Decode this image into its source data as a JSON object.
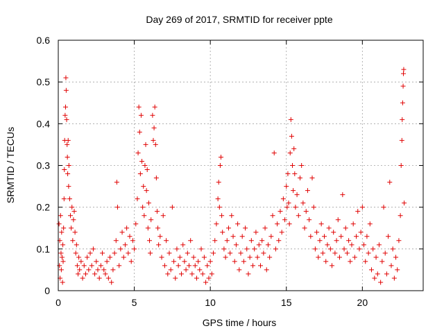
{
  "chart_data": {
    "type": "scatter",
    "title": "Day 269 of 2017, SRMTID for receiver ppte",
    "xlabel": "GPS time / hours",
    "ylabel": "SRMTID / TECUs",
    "xlim": [
      0,
      24
    ],
    "ylim": [
      0,
      0.6
    ],
    "xticks": [
      0,
      5,
      10,
      15,
      20
    ],
    "xtick_labels": [
      "0",
      "5",
      "10",
      "15",
      "20"
    ],
    "yticks": [
      0,
      0.1,
      0.2,
      0.3,
      0.4,
      0.5,
      0.6
    ],
    "ytick_labels": [
      "0",
      "0.1",
      "0.2",
      "0.3",
      "0.4",
      "0.5",
      "0.6"
    ],
    "grid": true,
    "marker": "+",
    "color": "#e00000",
    "series": [
      {
        "name": "SRMTID",
        "points": [
          [
            0.05,
            0.16
          ],
          [
            0.08,
            0.06
          ],
          [
            0.1,
            0.12
          ],
          [
            0.12,
            0.03
          ],
          [
            0.15,
            0.18
          ],
          [
            0.18,
            0.09
          ],
          [
            0.2,
            0.05
          ],
          [
            0.22,
            0.14
          ],
          [
            0.25,
            0.08
          ],
          [
            0.28,
            0.02
          ],
          [
            0.3,
            0.11
          ],
          [
            0.32,
            0.07
          ],
          [
            0.35,
            0.15
          ],
          [
            0.38,
            0.22
          ],
          [
            0.4,
            0.29
          ],
          [
            0.42,
            0.36
          ],
          [
            0.45,
            0.42
          ],
          [
            0.48,
            0.44
          ],
          [
            0.5,
            0.51
          ],
          [
            0.52,
            0.48
          ],
          [
            0.55,
            0.41
          ],
          [
            0.58,
            0.35
          ],
          [
            0.6,
            0.32
          ],
          [
            0.62,
            0.28
          ],
          [
            0.65,
            0.36
          ],
          [
            0.68,
            0.25
          ],
          [
            0.7,
            0.3
          ],
          [
            0.75,
            0.22
          ],
          [
            0.8,
            0.18
          ],
          [
            0.85,
            0.15
          ],
          [
            0.9,
            0.2
          ],
          [
            0.95,
            0.12
          ],
          [
            1.0,
            0.17
          ],
          [
            1.05,
            0.19
          ],
          [
            1.1,
            0.14
          ],
          [
            1.15,
            0.09
          ],
          [
            1.2,
            0.11
          ],
          [
            1.25,
            0.06
          ],
          [
            1.3,
            0.04
          ],
          [
            1.35,
            0.08
          ],
          [
            1.4,
            0.05
          ],
          [
            1.5,
            0.07
          ],
          [
            1.6,
            0.03
          ],
          [
            1.7,
            0.06
          ],
          [
            1.8,
            0.04
          ],
          [
            1.9,
            0.08
          ],
          [
            2.0,
            0.05
          ],
          [
            2.1,
            0.09
          ],
          [
            2.2,
            0.06
          ],
          [
            2.3,
            0.1
          ],
          [
            2.4,
            0.04
          ],
          [
            2.5,
            0.07
          ],
          [
            2.6,
            0.05
          ],
          [
            2.7,
            0.03
          ],
          [
            2.8,
            0.06
          ],
          [
            2.9,
            0.09
          ],
          [
            3.0,
            0.05
          ],
          [
            3.1,
            0.04
          ],
          [
            3.2,
            0.07
          ],
          [
            3.3,
            0.03
          ],
          [
            3.4,
            0.08
          ],
          [
            3.5,
            0.02
          ],
          [
            3.6,
            0.05
          ],
          [
            3.7,
            0.09
          ],
          [
            3.8,
            0.12
          ],
          [
            3.85,
            0.26
          ],
          [
            3.9,
            0.2
          ],
          [
            4.0,
            0.06
          ],
          [
            4.1,
            0.1
          ],
          [
            4.2,
            0.14
          ],
          [
            4.3,
            0.08
          ],
          [
            4.4,
            0.11
          ],
          [
            4.5,
            0.15
          ],
          [
            4.6,
            0.09
          ],
          [
            4.7,
            0.13
          ],
          [
            4.8,
            0.07
          ],
          [
            4.9,
            0.12
          ],
          [
            5.0,
            0.1
          ],
          [
            5.1,
            0.16
          ],
          [
            5.2,
            0.22
          ],
          [
            5.25,
            0.33
          ],
          [
            5.3,
            0.44
          ],
          [
            5.35,
            0.38
          ],
          [
            5.4,
            0.28
          ],
          [
            5.45,
            0.42
          ],
          [
            5.5,
            0.31
          ],
          [
            5.55,
            0.2
          ],
          [
            5.6,
            0.25
          ],
          [
            5.65,
            0.18
          ],
          [
            5.7,
            0.3
          ],
          [
            5.75,
            0.35
          ],
          [
            5.8,
            0.24
          ],
          [
            5.85,
            0.29
          ],
          [
            5.9,
            0.15
          ],
          [
            5.95,
            0.21
          ],
          [
            6.0,
            0.12
          ],
          [
            6.05,
            0.09
          ],
          [
            6.1,
            0.17
          ],
          [
            6.2,
            0.42
          ],
          [
            6.25,
            0.36
          ],
          [
            6.3,
            0.39
          ],
          [
            6.35,
            0.44
          ],
          [
            6.4,
            0.35
          ],
          [
            6.45,
            0.27
          ],
          [
            6.5,
            0.19
          ],
          [
            6.55,
            0.15
          ],
          [
            6.6,
            0.11
          ],
          [
            6.7,
            0.13
          ],
          [
            6.8,
            0.08
          ],
          [
            6.9,
            0.18
          ],
          [
            7.0,
            0.06
          ],
          [
            7.1,
            0.12
          ],
          [
            7.2,
            0.04
          ],
          [
            7.3,
            0.09
          ],
          [
            7.4,
            0.05
          ],
          [
            7.5,
            0.2
          ],
          [
            7.6,
            0.07
          ],
          [
            7.7,
            0.03
          ],
          [
            7.8,
            0.1
          ],
          [
            7.9,
            0.06
          ],
          [
            8.0,
            0.08
          ],
          [
            8.1,
            0.04
          ],
          [
            8.2,
            0.11
          ],
          [
            8.3,
            0.07
          ],
          [
            8.4,
            0.05
          ],
          [
            8.5,
            0.09
          ],
          [
            8.6,
            0.06
          ],
          [
            8.7,
            0.12
          ],
          [
            8.8,
            0.04
          ],
          [
            8.9,
            0.08
          ],
          [
            9.0,
            0.06
          ],
          [
            9.1,
            0.03
          ],
          [
            9.2,
            0.07
          ],
          [
            9.3,
            0.05
          ],
          [
            9.4,
            0.1
          ],
          [
            9.5,
            0.04
          ],
          [
            9.6,
            0.08
          ],
          [
            9.7,
            0.02
          ],
          [
            9.8,
            0.06
          ],
          [
            9.9,
            0.03
          ],
          [
            10.0,
            0.07
          ],
          [
            10.1,
            0.04
          ],
          [
            10.2,
            0.09
          ],
          [
            10.3,
            0.12
          ],
          [
            10.4,
            0.16
          ],
          [
            10.5,
            0.22
          ],
          [
            10.55,
            0.26
          ],
          [
            10.6,
            0.2
          ],
          [
            10.65,
            0.3
          ],
          [
            10.7,
            0.32
          ],
          [
            10.75,
            0.18
          ],
          [
            10.8,
            0.14
          ],
          [
            10.9,
            0.1
          ],
          [
            11.0,
            0.08
          ],
          [
            11.1,
            0.12
          ],
          [
            11.2,
            0.15
          ],
          [
            11.3,
            0.09
          ],
          [
            11.4,
            0.18
          ],
          [
            11.5,
            0.13
          ],
          [
            11.6,
            0.07
          ],
          [
            11.7,
            0.11
          ],
          [
            11.8,
            0.16
          ],
          [
            11.9,
            0.05
          ],
          [
            12.0,
            0.09
          ],
          [
            12.1,
            0.13
          ],
          [
            12.2,
            0.07
          ],
          [
            12.3,
            0.15
          ],
          [
            12.4,
            0.1
          ],
          [
            12.5,
            0.04
          ],
          [
            12.6,
            0.08
          ],
          [
            12.7,
            0.12
          ],
          [
            12.8,
            0.06
          ],
          [
            12.9,
            0.1
          ],
          [
            13.0,
            0.14
          ],
          [
            13.1,
            0.08
          ],
          [
            13.2,
            0.11
          ],
          [
            13.3,
            0.06
          ],
          [
            13.4,
            0.12
          ],
          [
            13.5,
            0.09
          ],
          [
            13.6,
            0.15
          ],
          [
            13.7,
            0.05
          ],
          [
            13.8,
            0.11
          ],
          [
            13.9,
            0.08
          ],
          [
            14.0,
            0.13
          ],
          [
            14.1,
            0.18
          ],
          [
            14.2,
            0.33
          ],
          [
            14.3,
            0.1
          ],
          [
            14.4,
            0.16
          ],
          [
            14.5,
            0.12
          ],
          [
            14.6,
            0.19
          ],
          [
            14.7,
            0.14
          ],
          [
            14.8,
            0.22
          ],
          [
            14.9,
            0.17
          ],
          [
            15.0,
            0.25
          ],
          [
            15.05,
            0.2
          ],
          [
            15.1,
            0.28
          ],
          [
            15.15,
            0.21
          ],
          [
            15.2,
            0.16
          ],
          [
            15.25,
            0.33
          ],
          [
            15.3,
            0.41
          ],
          [
            15.35,
            0.37
          ],
          [
            15.4,
            0.3
          ],
          [
            15.45,
            0.24
          ],
          [
            15.5,
            0.34
          ],
          [
            15.55,
            0.28
          ],
          [
            15.6,
            0.2
          ],
          [
            15.7,
            0.23
          ],
          [
            15.8,
            0.18
          ],
          [
            15.9,
            0.27
          ],
          [
            16.0,
            0.3
          ],
          [
            16.1,
            0.21
          ],
          [
            16.2,
            0.15
          ],
          [
            16.3,
            0.19
          ],
          [
            16.4,
            0.24
          ],
          [
            16.5,
            0.17
          ],
          [
            16.6,
            0.13
          ],
          [
            16.7,
            0.27
          ],
          [
            16.8,
            0.2
          ],
          [
            16.9,
            0.1
          ],
          [
            17.0,
            0.14
          ],
          [
            17.1,
            0.08
          ],
          [
            17.2,
            0.12
          ],
          [
            17.3,
            0.16
          ],
          [
            17.4,
            0.09
          ],
          [
            17.5,
            0.13
          ],
          [
            17.6,
            0.07
          ],
          [
            17.7,
            0.11
          ],
          [
            17.8,
            0.15
          ],
          [
            17.9,
            0.1
          ],
          [
            18.0,
            0.06
          ],
          [
            18.1,
            0.14
          ],
          [
            18.2,
            0.09
          ],
          [
            18.3,
            0.12
          ],
          [
            18.4,
            0.17
          ],
          [
            18.5,
            0.08
          ],
          [
            18.6,
            0.13
          ],
          [
            18.7,
            0.23
          ],
          [
            18.8,
            0.1
          ],
          [
            18.9,
            0.15
          ],
          [
            19.0,
            0.09
          ],
          [
            19.1,
            0.12
          ],
          [
            19.2,
            0.07
          ],
          [
            19.3,
            0.11
          ],
          [
            19.4,
            0.16
          ],
          [
            19.5,
            0.08
          ],
          [
            19.6,
            0.13
          ],
          [
            19.7,
            0.19
          ],
          [
            19.8,
            0.1
          ],
          [
            19.9,
            0.14
          ],
          [
            20.0,
            0.2
          ],
          [
            20.1,
            0.11
          ],
          [
            20.2,
            0.07
          ],
          [
            20.3,
            0.13
          ],
          [
            20.4,
            0.09
          ],
          [
            20.5,
            0.16
          ],
          [
            20.6,
            0.05
          ],
          [
            20.7,
            0.1
          ],
          [
            20.8,
            0.03
          ],
          [
            20.9,
            0.08
          ],
          [
            21.0,
            0.04
          ],
          [
            21.1,
            0.11
          ],
          [
            21.2,
            0.02
          ],
          [
            21.3,
            0.07
          ],
          [
            21.4,
            0.2
          ],
          [
            21.5,
            0.09
          ],
          [
            21.6,
            0.04
          ],
          [
            21.7,
            0.13
          ],
          [
            21.8,
            0.26
          ],
          [
            21.9,
            0.06
          ],
          [
            22.0,
            0.1
          ],
          [
            22.1,
            0.03
          ],
          [
            22.2,
            0.08
          ],
          [
            22.3,
            0.05
          ],
          [
            22.4,
            0.12
          ],
          [
            22.5,
            0.18
          ],
          [
            22.55,
            0.3
          ],
          [
            22.6,
            0.36
          ],
          [
            22.62,
            0.41
          ],
          [
            22.65,
            0.45
          ],
          [
            22.68,
            0.49
          ],
          [
            22.7,
            0.52
          ],
          [
            22.72,
            0.53
          ],
          [
            22.75,
            0.21
          ]
        ]
      }
    ]
  }
}
